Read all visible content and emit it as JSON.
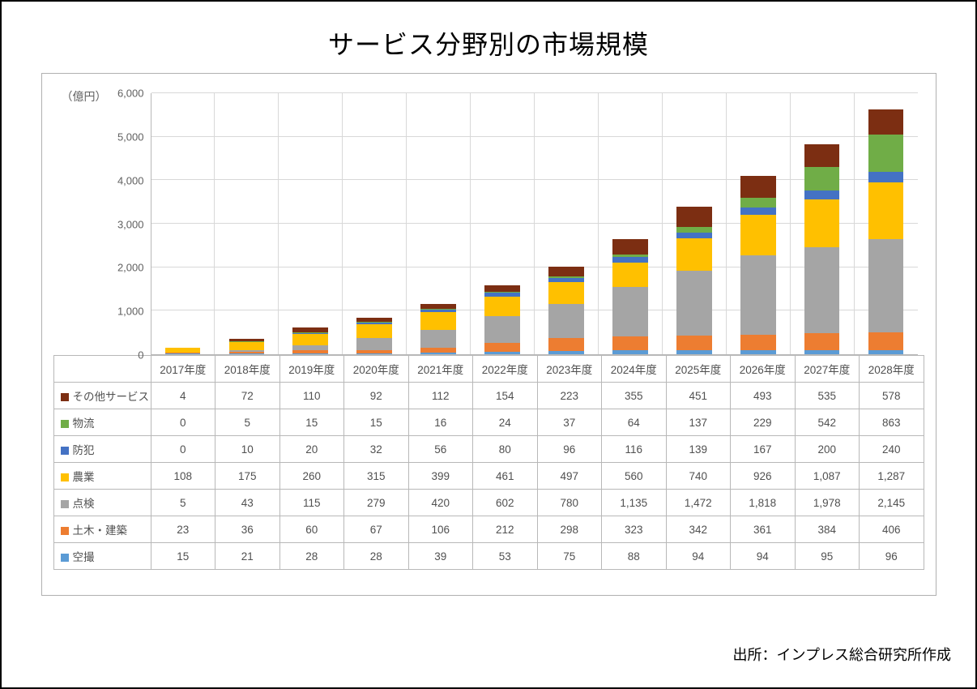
{
  "title": "サービス分野別の市場規模",
  "source": "出所：インプレス総合研究所作成",
  "chart": {
    "type": "stacked-bar",
    "yaxis_unit": "（億円）",
    "ylim": [
      0,
      6000
    ],
    "ytick_step": 1000,
    "yticks": [
      "0",
      "1,000",
      "2,000",
      "3,000",
      "4,000",
      "5,000",
      "6,000"
    ],
    "categories": [
      "2017年度",
      "2018年度",
      "2019年度",
      "2020年度",
      "2021年度",
      "2022年度",
      "2023年度",
      "2024年度",
      "2025年度",
      "2026年度",
      "2027年度",
      "2028年度"
    ],
    "series": [
      {
        "name": "空撮",
        "color": "#5b9bd5",
        "values": [
          15,
          21,
          28,
          28,
          39,
          53,
          75,
          88,
          94,
          94,
          95,
          96
        ]
      },
      {
        "name": "土木・建築",
        "color": "#ed7d31",
        "values": [
          23,
          36,
          60,
          67,
          106,
          212,
          298,
          323,
          342,
          361,
          384,
          406
        ]
      },
      {
        "name": "点検",
        "color": "#a5a5a5",
        "values": [
          5,
          43,
          115,
          279,
          420,
          602,
          780,
          1135,
          1472,
          1818,
          1978,
          2145
        ]
      },
      {
        "name": "農業",
        "color": "#ffc000",
        "values": [
          108,
          175,
          260,
          315,
          399,
          461,
          497,
          560,
          740,
          926,
          1087,
          1287
        ]
      },
      {
        "name": "防犯",
        "color": "#4472c4",
        "values": [
          0,
          10,
          20,
          32,
          56,
          80,
          96,
          116,
          139,
          167,
          200,
          240
        ]
      },
      {
        "name": "物流",
        "color": "#70ad47",
        "values": [
          0,
          5,
          15,
          15,
          16,
          24,
          37,
          64,
          137,
          229,
          542,
          863
        ]
      },
      {
        "name": "その他サービス",
        "color": "#7c2e12",
        "values": [
          4,
          72,
          110,
          92,
          112,
          154,
          223,
          355,
          451,
          493,
          535,
          578
        ]
      }
    ],
    "table_order": [
      "その他サービス",
      "物流",
      "防犯",
      "農業",
      "点検",
      "土木・建築",
      "空撮"
    ],
    "axis_fontsize": 13,
    "title_fontsize": 32,
    "background_color": "#ffffff",
    "grid_color": "#d8d8d8",
    "border_color": "#b8b8b8",
    "bar_width_ratio": 0.56
  }
}
